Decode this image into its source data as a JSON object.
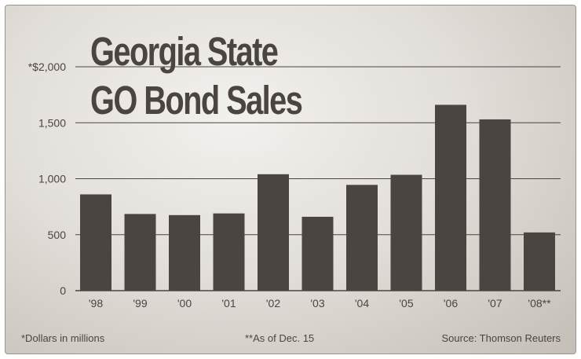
{
  "chart_data": {
    "type": "bar",
    "title": "Georgia State GO Bond Sales",
    "title_lines": [
      "Georgia State",
      "GO Bond Sales"
    ],
    "categories": [
      "'98",
      "'99",
      "'00",
      "'01",
      "'02",
      "'03",
      "'04",
      "'05",
      "'06",
      "'07",
      "'08**"
    ],
    "values": [
      860,
      685,
      675,
      690,
      1040,
      660,
      945,
      1035,
      1660,
      1530,
      520
    ],
    "ylim": [
      0,
      2000
    ],
    "yticks": [
      0,
      500,
      1000,
      1500,
      2000
    ],
    "ytick_labels": [
      "0",
      "500",
      "1,000",
      "1,500",
      "*$2,000"
    ],
    "grid": true,
    "colors": {
      "bar": "#4a4541",
      "grid": "#4a4541",
      "text": "#4a4541"
    }
  },
  "footer": {
    "note_units": "*Dollars in millions",
    "note_date": "**As of Dec. 15",
    "source": "Source: Thomson Reuters"
  }
}
